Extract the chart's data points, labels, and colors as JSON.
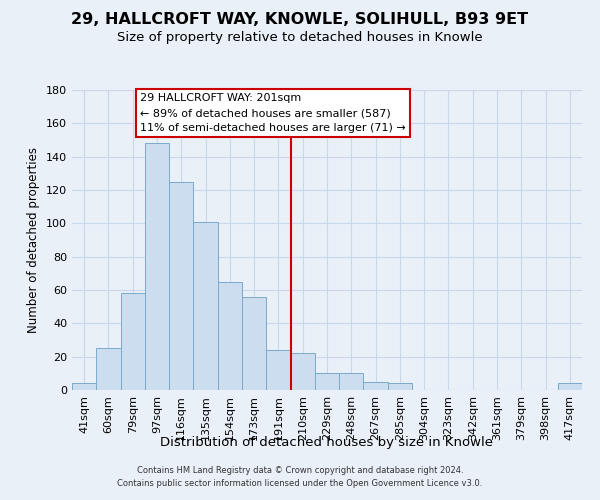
{
  "title": "29, HALLCROFT WAY, KNOWLE, SOLIHULL, B93 9ET",
  "subtitle": "Size of property relative to detached houses in Knowle",
  "xlabel": "Distribution of detached houses by size in Knowle",
  "ylabel": "Number of detached properties",
  "bar_labels": [
    "41sqm",
    "60sqm",
    "79sqm",
    "97sqm",
    "116sqm",
    "135sqm",
    "154sqm",
    "173sqm",
    "191sqm",
    "210sqm",
    "229sqm",
    "248sqm",
    "267sqm",
    "285sqm",
    "304sqm",
    "323sqm",
    "342sqm",
    "361sqm",
    "379sqm",
    "398sqm",
    "417sqm"
  ],
  "bar_values": [
    4,
    25,
    58,
    148,
    125,
    101,
    65,
    56,
    24,
    22,
    10,
    10,
    5,
    4,
    0,
    0,
    0,
    0,
    0,
    0,
    4
  ],
  "bar_color": "#ccddf0",
  "bar_edge_color": "#7aaacc",
  "bg_color": "#eaf0f8",
  "grid_color": "#c8d8ea",
  "vline_color": "#cc0000",
  "annotation_title": "29 HALLCROFT WAY: 201sqm",
  "annotation_line1": "← 89% of detached houses are smaller (587)",
  "annotation_line2": "11% of semi-detached houses are larger (71) →",
  "annotation_box_color": "#ffffff",
  "annotation_box_edge": "#cc0000",
  "footer_line1": "Contains HM Land Registry data © Crown copyright and database right 2024.",
  "footer_line2": "Contains public sector information licensed under the Open Government Licence v3.0.",
  "ylim": [
    0,
    180
  ],
  "yticks": [
    0,
    20,
    40,
    60,
    80,
    100,
    120,
    140,
    160,
    180
  ],
  "vline_index": 8.5,
  "title_fontsize": 11.5,
  "subtitle_fontsize": 9.5,
  "xlabel_fontsize": 9.5,
  "ylabel_fontsize": 8.5,
  "tick_fontsize": 8,
  "annotation_fontsize": 8,
  "footer_fontsize": 6
}
